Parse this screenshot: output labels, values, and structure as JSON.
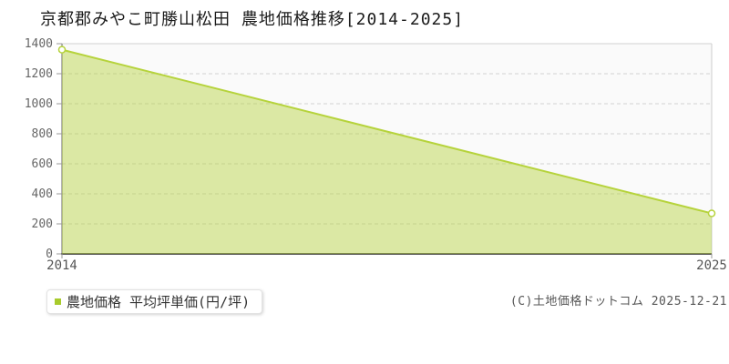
{
  "title": "京都郡みやこ町勝山松田 農地価格推移[2014-2025]",
  "legend": {
    "label": "農地価格 平均坪単価(円/坪)",
    "marker_color": "#a8cb2c"
  },
  "footer": {
    "copyright": "(C)土地価格ドットコム 2025-12-21"
  },
  "chart_data": {
    "type": "area",
    "title": "京都郡みやこ町勝山松田 農地価格推移[2014-2025]",
    "series_name": "農地価格 平均坪単価(円/坪)",
    "x": [
      2014,
      2025
    ],
    "values": [
      1360,
      270
    ],
    "xlabel": "",
    "ylabel": "",
    "xlim": [
      2014,
      2025
    ],
    "ylim": [
      0,
      1400
    ],
    "xticks": [
      "2014",
      "2025"
    ],
    "yticks": [
      0,
      200,
      400,
      600,
      800,
      1000,
      1200,
      1400
    ],
    "grid": true,
    "legend_position": "bottom-left",
    "colors": {
      "line": "#b6d33c",
      "fill": "#b6d33c",
      "fill_opacity": 0.45,
      "marker_fill": "#ffffff",
      "grid": "#d2d2d2",
      "plot_bg": "#fafafa",
      "axis": "#666666",
      "tick_text": "#666666"
    }
  }
}
